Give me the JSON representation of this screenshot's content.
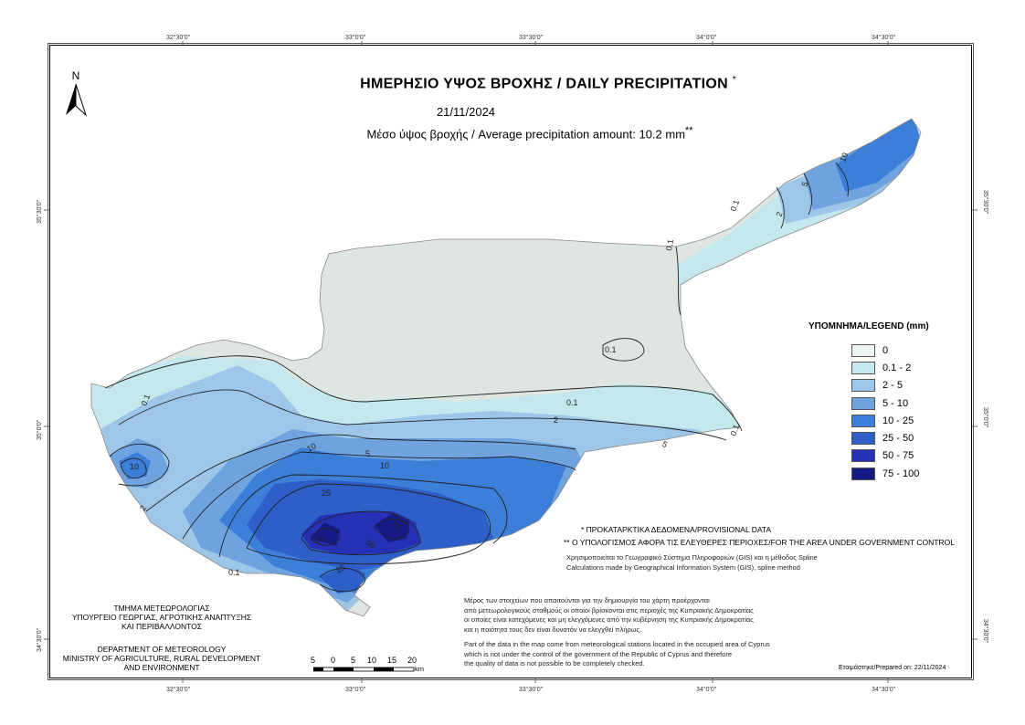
{
  "map": {
    "title": "ΗΜΕΡΗΣΙΟ ΥΨΟΣ ΒΡΟΧΗΣ / DAILY PRECIPITATION",
    "title_mark": "*",
    "date": "21/11/2024",
    "average_label": "Μέσο ύψος βροχής / Average precipitation amount: 10.2 mm",
    "average_mark": "**",
    "north_label": "N"
  },
  "graticule": {
    "top": [
      "32°30'0\"",
      "33°0'0\"",
      "33°30'0\"",
      "34°0'0\"",
      "34°30'0\""
    ],
    "bottom": [
      "32°30'0\"",
      "33°0'0\"",
      "33°30'0\"",
      "34°0'0\"",
      "34°30'0\""
    ],
    "left": [
      "35°30'0\"",
      "35°0'0\"",
      "34°30'0\""
    ],
    "right": [
      "35°30'0\"",
      "35°0'0\"",
      "34°30'0\""
    ]
  },
  "legend": {
    "title": "ΥΠΟΜΝΗΜΑ/LEGEND (mm)",
    "items": [
      {
        "label": "0",
        "color": "#edf6ee"
      },
      {
        "label": "0.1 - 2",
        "color": "#c4e8ed"
      },
      {
        "label": "2 - 5",
        "color": "#9ec6e8"
      },
      {
        "label": "5 - 10",
        "color": "#6ea3e0"
      },
      {
        "label": "10 - 25",
        "color": "#3b7fd8"
      },
      {
        "label": "25 - 50",
        "color": "#2e5ec7"
      },
      {
        "label": "50 - 75",
        "color": "#2630b4"
      },
      {
        "label": "75 - 100",
        "color": "#151a85"
      }
    ]
  },
  "contour_labels": [
    "0.1",
    "0.1",
    "0.1",
    "0.1",
    "0.1",
    "0.1",
    "2",
    "2",
    "5",
    "5",
    "10",
    "10",
    "10",
    "10",
    "25",
    "25",
    "50",
    "75",
    "75",
    "0.1",
    "2",
    "5"
  ],
  "notes": {
    "provisional": "* ΠΡΟΚΑΤΑΡΚΤΙΚΑ ΔΕΔΟΜΕΝΑ/PROVISIONAL DATA",
    "area": "** Ο ΥΠΟΛΟΓΙΣΜΟΣ ΑΦΟΡΑ ΤΙΣ ΕΛΕΥΘΕΡΕΣ ΠΕΡΙΟΧΕΣ/FOR THE AREA UNDER GOVERNMENT CONTROL",
    "gis_gr": "Χρησιμοποιείται το Γεωγραφικό Σύστημα Πληροφοριών (GIS) και η μέθοδος Spline",
    "gis_en": "Calculations made by Geographical Information System (GIS), spline method",
    "data_gr": [
      "Μέρος των στοιχείων που απαιτούνται για την δημιουργία του χάρτη προέρχονται",
      "από μετεωρολογικούς σταθμούς οι οποίοι βρίσκονται στις περιοχές της Κυπριακής Δημοκρατίας",
      "οι οποίες είναι κατεχόμενες και μη ελεγχόμενες από την κυβέρνηση της Κυπριακής Δημοκρατίας",
      "και η ποιότητα τους δεν είναι δυνατόν να ελεγχθεί πλήρως."
    ],
    "data_en": [
      "Part of the data in the map come from meteorological stations located in the occupied area of Cyprus",
      "which is not under the control of the government of the Republic of Cyprus and therefore",
      "the quality of data is not possible to be completely checked."
    ]
  },
  "department": {
    "gr": [
      "ΤΜΗΜΑ ΜΕΤΕΩΡΟΛΟΓΙΑΣ",
      "ΥΠΟΥΡΓΕΙΟ ΓΕΩΡΓΙΑΣ, ΑΓΡΟΤΙΚΗΣ ΑΝΑΠΤΥΞΗΣ",
      "ΚΑΙ ΠΕΡΙΒΑΛΛΟΝΤΟΣ"
    ],
    "en": [
      "DEPARTMENT OF METEOROLOGY",
      "MINISTRY OF AGRICULTURE, RURAL DEVELOPMENT",
      "AND ENVIRONMENT"
    ]
  },
  "scale": {
    "ticks": [
      "5",
      "0",
      "5",
      "10",
      "15",
      "20"
    ],
    "unit": "km"
  },
  "prepared": "Ετοιμάστηκε/Prepared on: 22/11/2024"
}
